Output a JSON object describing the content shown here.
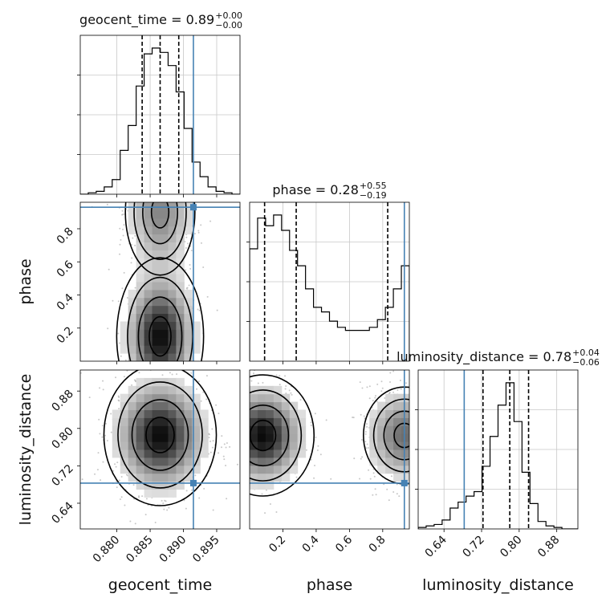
{
  "chart_data": {
    "type": "corner",
    "parameters": [
      "geocent_time",
      "phase",
      "luminosity_distance"
    ],
    "titles": [
      {
        "text": "geocent_time = 0.89",
        "sup": "+0.00",
        "sub": "−0.00"
      },
      {
        "text": "phase = 0.28",
        "sup": "+0.55",
        "sub": "−0.19"
      },
      {
        "text": "luminosity_distance = 0.78",
        "sup": "+0.04",
        "sub": "−0.06"
      }
    ],
    "axis_labels": [
      "geocent_time",
      "phase",
      "luminosity_distance"
    ],
    "ranges": [
      [
        0.8745,
        0.8985
      ],
      [
        0.0,
        0.96
      ],
      [
        0.585,
        0.925
      ]
    ],
    "ticks": [
      {
        "values": [
          0.88,
          0.885,
          0.89,
          0.895
        ],
        "labels": [
          "0.880",
          "0.885",
          "0.890",
          "0.895"
        ]
      },
      {
        "values": [
          0.2,
          0.4,
          0.6,
          0.8
        ],
        "labels": [
          "0.2",
          "0.4",
          "0.6",
          "0.8"
        ]
      },
      {
        "values": [
          0.64,
          0.72,
          0.8,
          0.88
        ],
        "labels": [
          "0.64",
          "0.72",
          "0.80",
          "0.88"
        ]
      }
    ],
    "truths": [
      0.8915,
      0.93,
      0.683
    ],
    "quantiles": [
      [
        0.8838,
        0.8865,
        0.8893
      ],
      [
        0.09,
        0.28,
        0.83
      ],
      [
        0.723,
        0.78,
        0.82
      ]
    ],
    "histograms": [
      {
        "param": "geocent_time",
        "bin_edges": [
          0.8745,
          0.8757,
          0.8769,
          0.8781,
          0.8793,
          0.8805,
          0.8817,
          0.8829,
          0.8841,
          0.8853,
          0.8865,
          0.8877,
          0.8889,
          0.8901,
          0.8913,
          0.8925,
          0.8937,
          0.8949,
          0.8961,
          0.8973,
          0.8985
        ],
        "counts": [
          0,
          1,
          2,
          5,
          10,
          30,
          47,
          74,
          96,
          100,
          97,
          88,
          70,
          45,
          22,
          12,
          5,
          2,
          1,
          0
        ]
      },
      {
        "param": "phase",
        "bin_edges": [
          0.0,
          0.048,
          0.096,
          0.144,
          0.192,
          0.24,
          0.288,
          0.336,
          0.384,
          0.432,
          0.48,
          0.528,
          0.576,
          0.624,
          0.672,
          0.72,
          0.768,
          0.816,
          0.864,
          0.912,
          0.96
        ],
        "counts": [
          73,
          93,
          88,
          95,
          85,
          72,
          62,
          47,
          35,
          32,
          26,
          22,
          20,
          20,
          20,
          22,
          27,
          35,
          47,
          62
        ]
      },
      {
        "param": "luminosity_distance",
        "bin_edges": [
          0.585,
          0.602,
          0.619,
          0.636,
          0.653,
          0.67,
          0.687,
          0.704,
          0.721,
          0.738,
          0.755,
          0.772,
          0.789,
          0.806,
          0.823,
          0.84,
          0.857,
          0.874,
          0.891,
          0.908,
          0.925
        ],
        "counts": [
          1,
          2,
          3,
          6,
          14,
          18,
          22,
          25,
          42,
          62,
          83,
          98,
          72,
          38,
          17,
          5,
          2,
          1,
          0,
          0
        ]
      }
    ],
    "contour_panels": [
      {
        "x": "geocent_time",
        "y": "phase",
        "peak": [
          0.8865,
          0.14
        ]
      },
      {
        "x": "geocent_time",
        "y": "luminosity_distance",
        "peak": [
          0.8865,
          0.786
        ]
      },
      {
        "x": "phase",
        "y": "luminosity_distance",
        "peak": [
          0.08,
          0.785
        ]
      }
    ],
    "grid": true,
    "truth_color": "#4682b4"
  }
}
